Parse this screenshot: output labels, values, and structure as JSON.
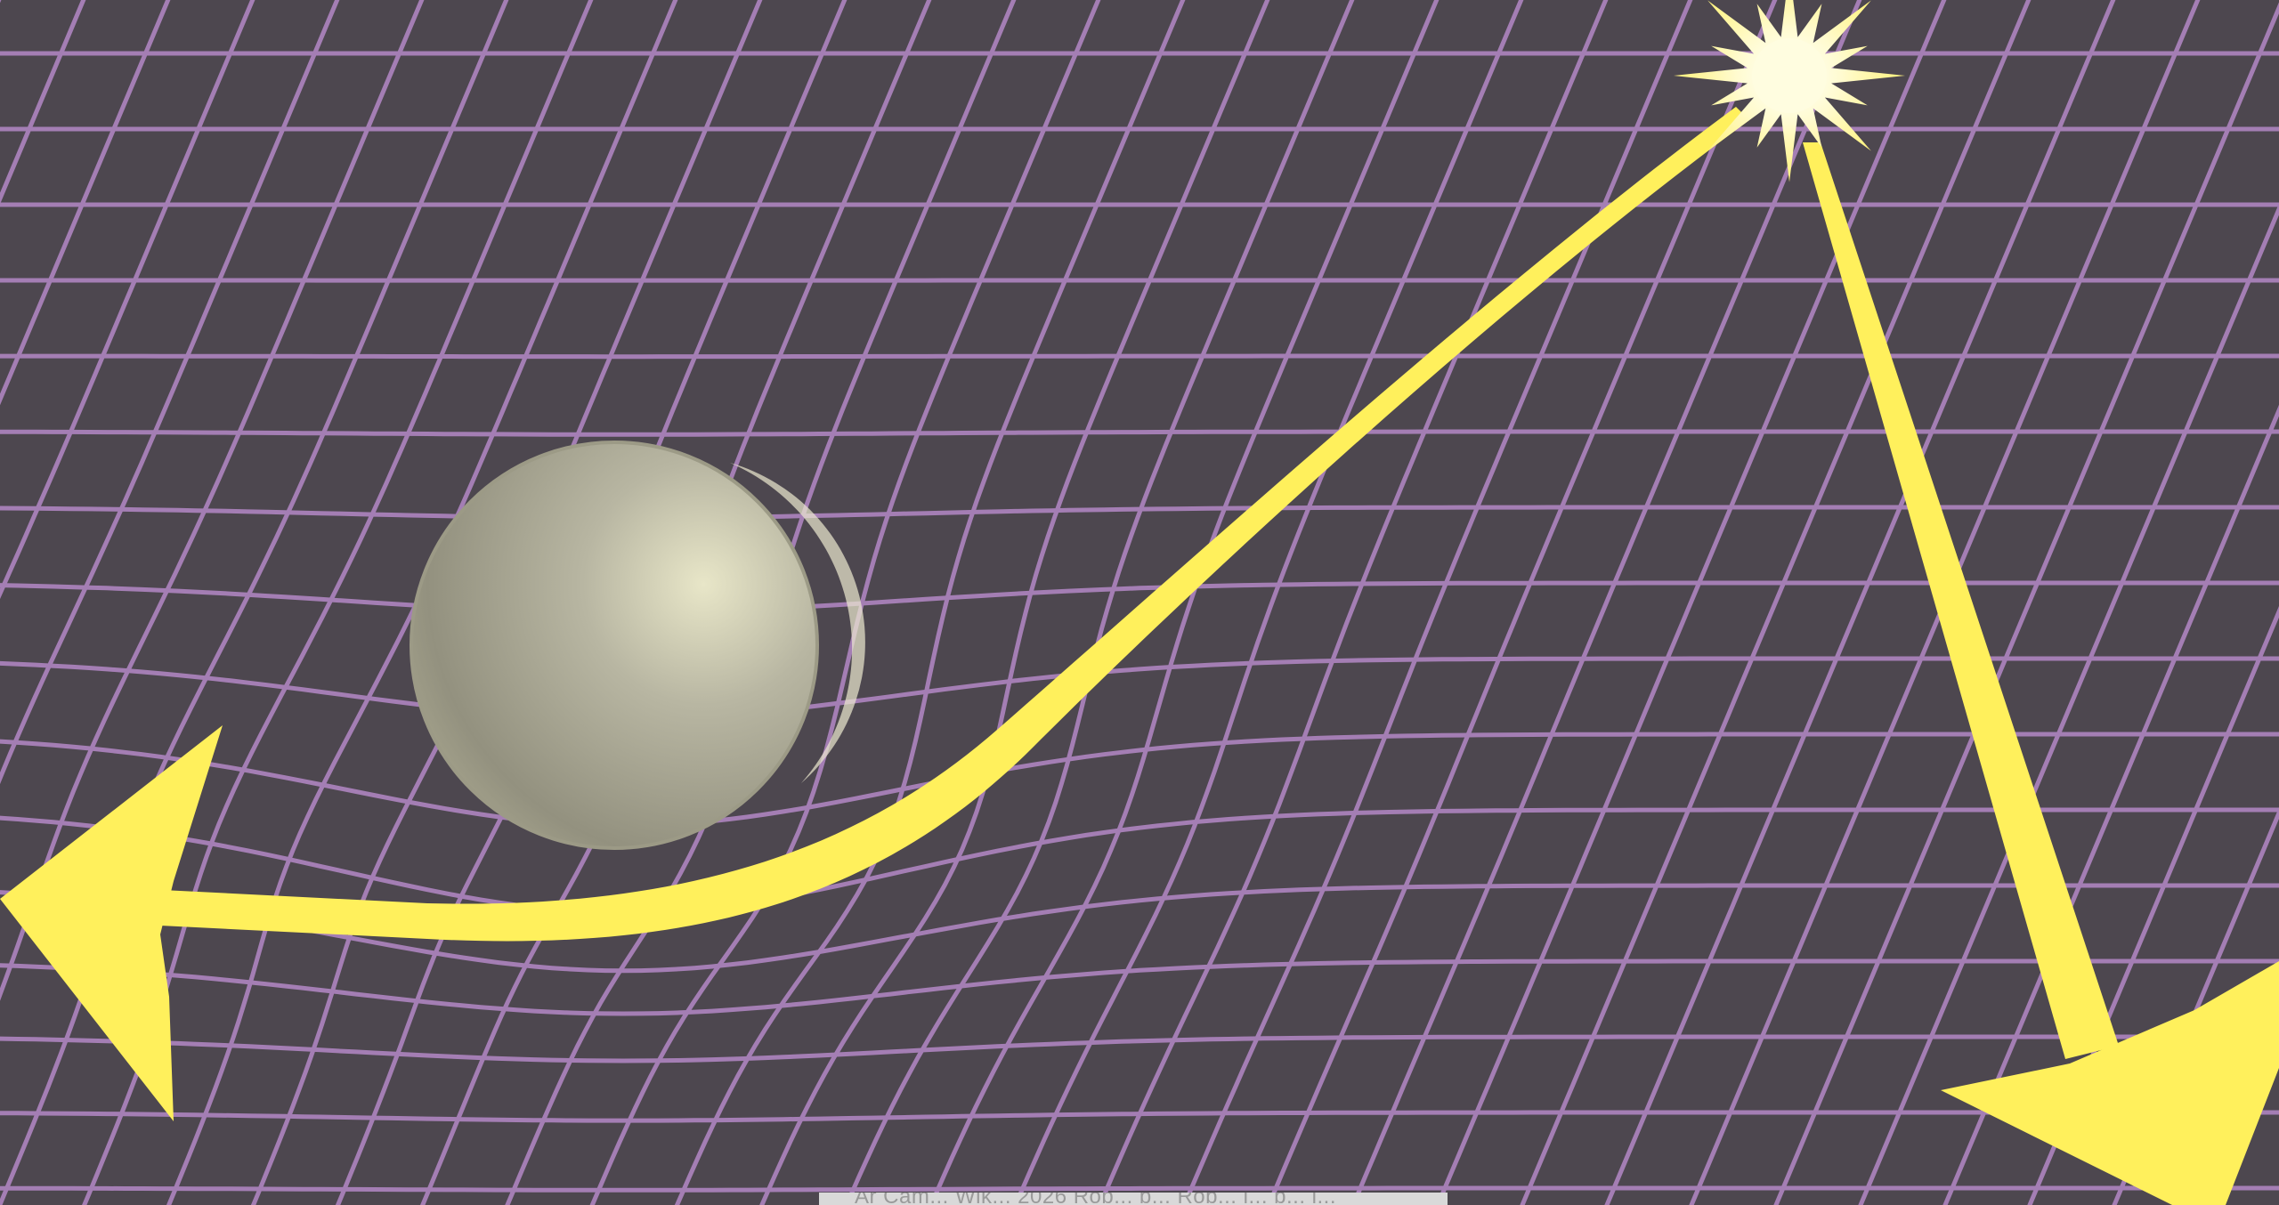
{
  "scene": {
    "subject": "spacetime-grid-with-deflected-light",
    "colors": {
      "background": "#4d474f",
      "grid": "#a47eb4",
      "light_beam": "#fff05c",
      "star_core": "#fffde0",
      "sphere_light": "#dedcbc",
      "sphere_dark": "#8f8d82"
    },
    "icons": {
      "star": "starburst-icon",
      "left_arrow": "arrow-left-icon",
      "right_arrow": "arrow-down-right-icon"
    }
  },
  "credit": {
    "text": "Ar Cam... Wik... 2026 Rob... b... Rob... i... b... l..."
  }
}
